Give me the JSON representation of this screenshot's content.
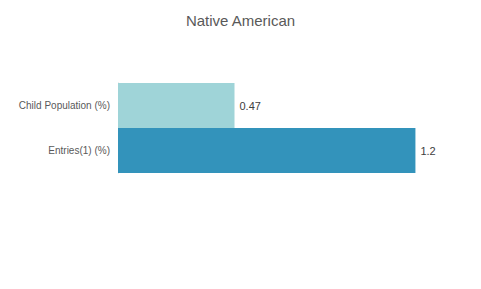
{
  "chart_data": {
    "type": "bar",
    "title": "Native American",
    "orientation": "horizontal",
    "categories": [
      "Child Population (%)",
      "Entries(1) (%)"
    ],
    "values": [
      0.47,
      1.2
    ],
    "colors": [
      "#9fd4d8",
      "#3393bb"
    ],
    "xlim": [
      0,
      1.4
    ],
    "grid": false,
    "data_labels": true,
    "tick_labels": "y"
  }
}
